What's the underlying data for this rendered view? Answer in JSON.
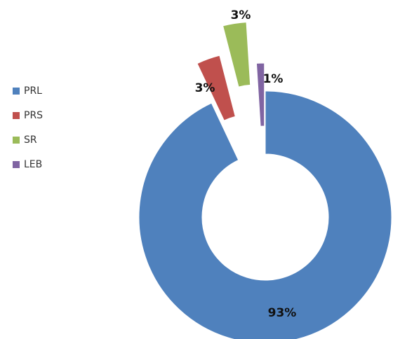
{
  "chart_data": {
    "type": "donut",
    "categories": [
      "PRL",
      "PRS",
      "SR",
      "LEB"
    ],
    "values": [
      93,
      3,
      3,
      1
    ],
    "value_labels": [
      "93%",
      "3%",
      "3%",
      "1%"
    ],
    "colors": [
      "#4f81bd",
      "#c0504d",
      "#9bbb59",
      "#8064a2"
    ],
    "legend": "left"
  }
}
